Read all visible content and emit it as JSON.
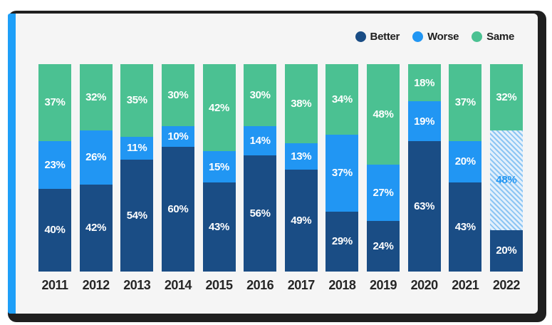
{
  "chart_data": {
    "type": "bar",
    "variant": "stacked-100-percent-column",
    "title": "",
    "categories": [
      "2011",
      "2012",
      "2013",
      "2014",
      "2015",
      "2016",
      "2017",
      "2018",
      "2019",
      "2020",
      "2021",
      "2022"
    ],
    "series": [
      {
        "name": "Better",
        "color": "#1A4D85",
        "values": [
          40,
          42,
          54,
          60,
          43,
          56,
          49,
          29,
          24,
          63,
          43,
          20
        ]
      },
      {
        "name": "Worse",
        "color": "#2196F3",
        "values": [
          23,
          26,
          11,
          10,
          15,
          14,
          13,
          37,
          27,
          19,
          20,
          48
        ]
      },
      {
        "name": "Same",
        "color": "#4BC192",
        "values": [
          37,
          32,
          35,
          30,
          42,
          30,
          38,
          34,
          48,
          18,
          37,
          32
        ]
      }
    ],
    "value_suffix": "%",
    "value_label_color": "#ffffff",
    "legend_position": "top-right",
    "grid": "off",
    "ylim": [
      0,
      100
    ],
    "highlight": {
      "category": "2022",
      "series": "Worse",
      "pattern": "diagonal-hatch",
      "hatch_line_color": "#8CC5F3",
      "hatch_bg_color": "#E3F0FC",
      "label_color": "#2196F3"
    }
  },
  "frame": {
    "border_color": "#1f1f1f",
    "accent_color": "#1E9FF8",
    "panel_color": "#f5f5f5",
    "year_label_color": "#262626"
  }
}
